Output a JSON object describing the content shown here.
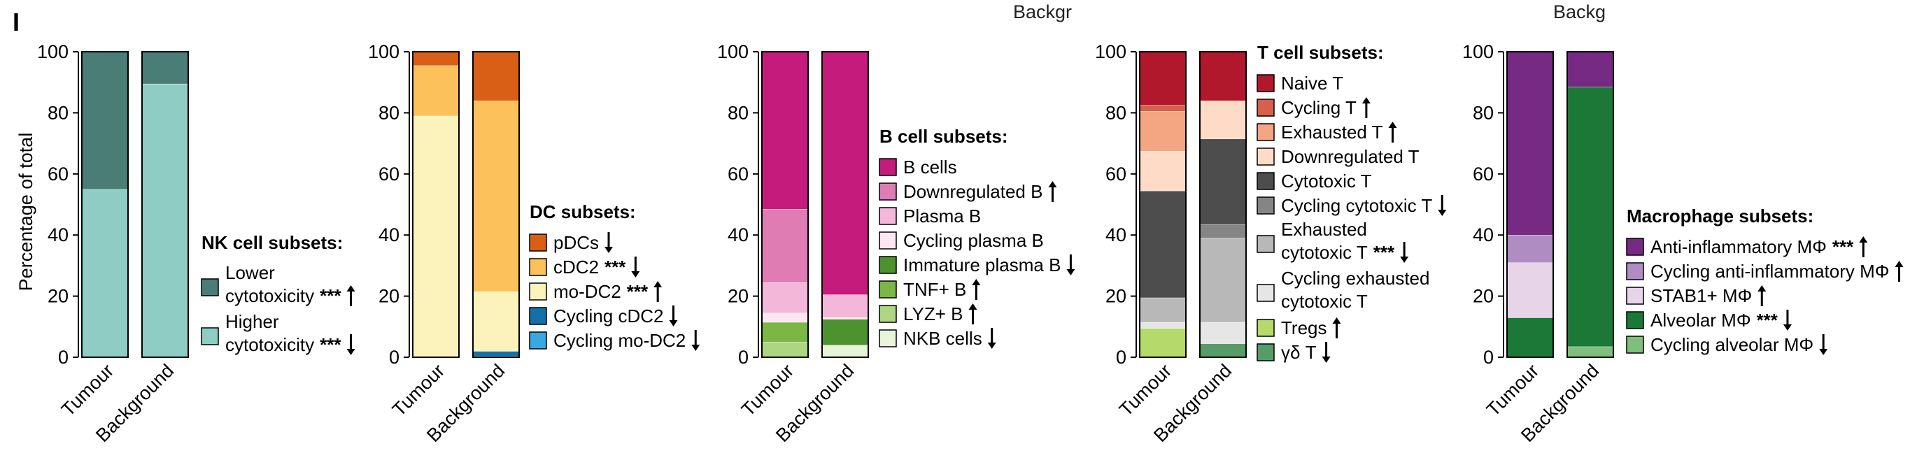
{
  "panel_label": "I",
  "y_axis_label": "Percentage of total",
  "clipped_top_texts": [
    "Backgr",
    "Backg"
  ],
  "sig_marker": "***",
  "arrow_glyphs": {
    "up": "↑",
    "down": "↓"
  },
  "chart_data": [
    {
      "type": "bar",
      "stacked": true,
      "id": "nk",
      "title": "",
      "xlabel": "",
      "ylabel": "Percentage of total",
      "ylim": [
        0,
        100
      ],
      "yticks": [
        "0",
        "20",
        "40",
        "60",
        "80",
        "100"
      ],
      "categories": [
        "Tumour",
        "Background"
      ],
      "legend_title": "NK cell subsets:",
      "series": [
        {
          "name": "Higher cytotoxicity",
          "label_lines": [
            "Higher",
            "cytotoxicity"
          ],
          "color": "#8fcdc4",
          "values": [
            55.0,
            89.5
          ],
          "sig": "***",
          "arrow": "down"
        },
        {
          "name": "Lower cytotoxicity",
          "label_lines": [
            "Lower",
            "cytotoxicity"
          ],
          "color": "#4a7d75",
          "values": [
            45.0,
            10.5
          ],
          "sig": "***",
          "arrow": "up"
        }
      ]
    },
    {
      "type": "bar",
      "stacked": true,
      "id": "dc",
      "title": "",
      "xlabel": "",
      "ylabel": "",
      "ylim": [
        0,
        100
      ],
      "yticks": [
        "0",
        "20",
        "40",
        "60",
        "80",
        "100"
      ],
      "categories": [
        "Tumour",
        "Background"
      ],
      "legend_title": "DC subsets:",
      "series": [
        {
          "name": "Cycling mo-DC2",
          "label_lines": [
            "Cycling mo-DC2"
          ],
          "color": "#39a8e0",
          "values": [
            0.0,
            0.3
          ],
          "sig": "",
          "arrow": "down"
        },
        {
          "name": "Cycling cDC2",
          "label_lines": [
            "Cycling cDC2"
          ],
          "color": "#1470a8",
          "values": [
            0.0,
            1.7
          ],
          "sig": "",
          "arrow": "down"
        },
        {
          "name": "mo-DC2",
          "label_lines": [
            "mo-DC2"
          ],
          "color": "#fcf3bc",
          "values": [
            79.0,
            19.5
          ],
          "sig": "***",
          "arrow": "up"
        },
        {
          "name": "cDC2",
          "label_lines": [
            "cDC2"
          ],
          "color": "#fcc15a",
          "values": [
            16.5,
            62.5
          ],
          "sig": "***",
          "arrow": "down"
        },
        {
          "name": "pDCs",
          "label_lines": [
            "pDCs"
          ],
          "color": "#d95f17",
          "values": [
            4.5,
            16.0
          ],
          "sig": "",
          "arrow": "down"
        }
      ]
    },
    {
      "type": "bar",
      "stacked": true,
      "id": "b",
      "title": "",
      "xlabel": "",
      "ylabel": "",
      "ylim": [
        0,
        100
      ],
      "yticks": [
        "0",
        "20",
        "40",
        "60",
        "80",
        "100"
      ],
      "categories": [
        "Tumour",
        "Background"
      ],
      "legend_title": "B cell subsets:",
      "series": [
        {
          "name": "NKB cells",
          "label_lines": [
            "NKB cells"
          ],
          "color": "#e8f4da",
          "values": [
            0.0,
            4.0
          ],
          "sig": "",
          "arrow": "down"
        },
        {
          "name": "LYZ+ B",
          "label_lines": [
            "LYZ+ B"
          ],
          "color": "#aed582",
          "values": [
            5.0,
            0.0
          ],
          "sig": "",
          "arrow": "up"
        },
        {
          "name": "TNF+ B",
          "label_lines": [
            "TNF+ B"
          ],
          "color": "#7cb646",
          "values": [
            6.5,
            0.0
          ],
          "sig": "",
          "arrow": "up"
        },
        {
          "name": "Immature plasma B",
          "label_lines": [
            "Immature plasma B"
          ],
          "color": "#4c922f",
          "values": [
            0.0,
            8.5
          ],
          "sig": "",
          "arrow": "down"
        },
        {
          "name": "Cycling plasma B",
          "label_lines": [
            "Cycling plasma B"
          ],
          "color": "#fbe6f1",
          "values": [
            3.0,
            0.5
          ],
          "sig": "",
          "arrow": ""
        },
        {
          "name": "Plasma B",
          "label_lines": [
            "Plasma B"
          ],
          "color": "#f3b7da",
          "values": [
            10.0,
            7.5
          ],
          "sig": "",
          "arrow": ""
        },
        {
          "name": "Downregulated B",
          "label_lines": [
            "Downregulated B"
          ],
          "color": "#df7cb3",
          "values": [
            24.0,
            0.0
          ],
          "sig": "",
          "arrow": "up"
        },
        {
          "name": "B cells",
          "label_lines": [
            "B cells"
          ],
          "color": "#c51b7d",
          "values": [
            51.5,
            79.5
          ],
          "sig": "",
          "arrow": ""
        }
      ]
    },
    {
      "type": "bar",
      "stacked": true,
      "id": "t",
      "title": "",
      "xlabel": "",
      "ylabel": "",
      "ylim": [
        0,
        100
      ],
      "yticks": [
        "0",
        "20",
        "40",
        "60",
        "80",
        "100"
      ],
      "categories": [
        "Tumour",
        "Background"
      ],
      "legend_title": "T cell subsets:",
      "series": [
        {
          "name": "γδ T",
          "label_lines": [
            "γδ T"
          ],
          "color": "#569c68",
          "values": [
            0.0,
            4.5
          ],
          "sig": "",
          "arrow": "down"
        },
        {
          "name": "Tregs",
          "label_lines": [
            "Tregs"
          ],
          "color": "#b5d96b",
          "values": [
            9.5,
            0.0
          ],
          "sig": "",
          "arrow": "up"
        },
        {
          "name": "Cycling exhausted cytotoxic T",
          "label_lines": [
            "Cycling exhausted",
            "cytotoxic T"
          ],
          "color": "#e6e6e6",
          "values": [
            2.0,
            7.0
          ],
          "sig": "",
          "arrow": ""
        },
        {
          "name": "Exhausted cytotoxic T",
          "label_lines": [
            "Exhausted",
            "cytotoxic T"
          ],
          "color": "#b8b8b8",
          "values": [
            8.0,
            27.5
          ],
          "sig": "***",
          "arrow": "down"
        },
        {
          "name": "Cycling cytotoxic T",
          "label_lines": [
            "Cycling cytotoxic T"
          ],
          "color": "#858585",
          "values": [
            0.0,
            4.5
          ],
          "sig": "",
          "arrow": "down"
        },
        {
          "name": "Cytotoxic T",
          "label_lines": [
            "Cytotoxic T"
          ],
          "color": "#4d4d4d",
          "values": [
            35.0,
            28.0
          ],
          "sig": "",
          "arrow": ""
        },
        {
          "name": "Downregulated T",
          "label_lines": [
            "Downregulated T"
          ],
          "color": "#fddbc7",
          "values": [
            13.0,
            12.5
          ],
          "sig": "",
          "arrow": ""
        },
        {
          "name": "Exhausted T",
          "label_lines": [
            "Exhausted T"
          ],
          "color": "#f4a582",
          "values": [
            13.0,
            0.0
          ],
          "sig": "",
          "arrow": "up"
        },
        {
          "name": "Cycling T",
          "label_lines": [
            "Cycling T"
          ],
          "color": "#d6604d",
          "values": [
            2.0,
            0.0
          ],
          "sig": "",
          "arrow": "up"
        },
        {
          "name": "Naive T",
          "label_lines": [
            "Naive T"
          ],
          "color": "#b2182b",
          "values": [
            17.5,
            16.0
          ],
          "sig": "",
          "arrow": ""
        }
      ]
    },
    {
      "type": "bar",
      "stacked": true,
      "id": "mac",
      "title": "",
      "xlabel": "",
      "ylabel": "",
      "ylim": [
        0,
        100
      ],
      "yticks": [
        "0",
        "20",
        "40",
        "60",
        "80",
        "100"
      ],
      "categories": [
        "Tumour",
        "Background"
      ],
      "legend_title": "Macrophage subsets:",
      "series": [
        {
          "name": "Cycling alveolar MΦ",
          "label_lines": [
            "Cycling alveolar MΦ"
          ],
          "color": "#7fbf7b",
          "values": [
            0.0,
            3.5
          ],
          "sig": "",
          "arrow": "down"
        },
        {
          "name": "Alveolar MΦ",
          "label_lines": [
            "Alveolar MΦ"
          ],
          "color": "#1b7837",
          "values": [
            13.0,
            85.0
          ],
          "sig": "***",
          "arrow": "down"
        },
        {
          "name": "STAB1+ MΦ",
          "label_lines": [
            "STAB1+ MΦ"
          ],
          "color": "#e7d4e8",
          "values": [
            18.0,
            0.0
          ],
          "sig": "",
          "arrow": "up"
        },
        {
          "name": "Cycling anti-inflammatory MΦ",
          "label_lines": [
            "Cycling anti-inflammatory MΦ"
          ],
          "color": "#af8dc3",
          "values": [
            9.0,
            0.0
          ],
          "sig": "",
          "arrow": "up"
        },
        {
          "name": "Anti-inflammatory MΦ",
          "label_lines": [
            "Anti-inflammatory MΦ"
          ],
          "color": "#762a83",
          "values": [
            60.0,
            11.5
          ],
          "sig": "***",
          "arrow": "up"
        }
      ]
    }
  ]
}
